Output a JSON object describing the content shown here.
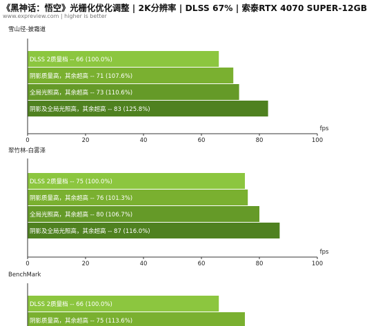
{
  "title": "《黑神话：悟空》光栅化优化调整 | 2K分辨率 | DLSS 67% | 索泰RTX 4070 SUPER-12GB",
  "subtitle": "www.expreview.com | higher is better",
  "chart_data": [
    {
      "type": "bar",
      "orientation": "horizontal",
      "title": "雪山径-披霜道",
      "xlabel": "fps",
      "xlim": [
        0,
        100
      ],
      "xticks": [
        0,
        20,
        40,
        60,
        80,
        100
      ],
      "bars": [
        {
          "label": "DLSS 2质量档  --  66 (100.0%)",
          "value": 66,
          "color": "#8cc63f"
        },
        {
          "label": "阴影质量高，其余超高  --  71 (107.6%)",
          "value": 71,
          "color": "#7ab030"
        },
        {
          "label": "全局光照高，其余超高  --  73 (110.6%)",
          "value": 73,
          "color": "#659a28"
        },
        {
          "label": "阴影及全局光照高，其余超高  --  83 (125.8%)",
          "value": 83,
          "color": "#4f8120"
        }
      ]
    },
    {
      "type": "bar",
      "orientation": "horizontal",
      "title": "翠竹林-白雾泽",
      "xlabel": "fps",
      "xlim": [
        0,
        100
      ],
      "xticks": [
        0,
        20,
        40,
        60,
        80,
        100
      ],
      "bars": [
        {
          "label": "DLSS 2质量档  --  75 (100.0%)",
          "value": 75,
          "color": "#8cc63f"
        },
        {
          "label": "阴影质量高，其余超高  --  76 (101.3%)",
          "value": 76,
          "color": "#7ab030"
        },
        {
          "label": "全局光照高，其余超高  --  80 (106.7%)",
          "value": 80,
          "color": "#659a28"
        },
        {
          "label": "阴影及全局光照高，其余超高  --  87 (116.0%)",
          "value": 87,
          "color": "#4f8120"
        }
      ]
    },
    {
      "type": "bar",
      "orientation": "horizontal",
      "title": "BenchMark",
      "xlabel": "",
      "xlim": [
        0,
        100
      ],
      "xticks": [],
      "bars": [
        {
          "label": "DLSS 2质量档  --  66 (100.0%)",
          "value": 66,
          "color": "#8cc63f"
        },
        {
          "label": "阴影质量高，其余超高  --  75 (113.6%)",
          "value": 75,
          "color": "#7ab030"
        }
      ]
    }
  ]
}
